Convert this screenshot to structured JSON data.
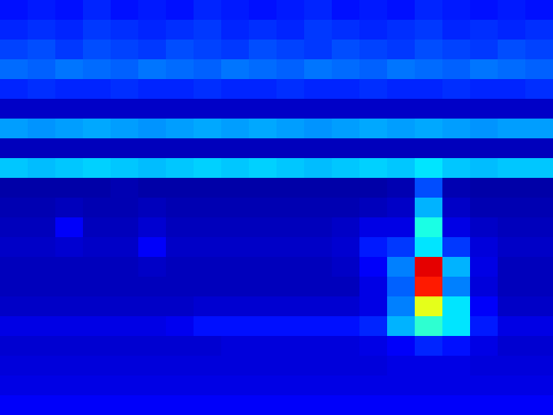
{
  "chart_data": {
    "type": "heatmap",
    "tick_labels": false,
    "zlim": [
      0,
      1
    ],
    "cells": [
      [
        0.14,
        0.15,
        0.14,
        0.16,
        0.14,
        0.15,
        0.14,
        0.16,
        0.15,
        0.14,
        0.15,
        0.16,
        0.14,
        0.15,
        0.14,
        0.16,
        0.15,
        0.14,
        0.15,
        0.14
      ],
      [
        0.16,
        0.17,
        0.16,
        0.18,
        0.17,
        0.16,
        0.17,
        0.18,
        0.16,
        0.17,
        0.16,
        0.18,
        0.17,
        0.16,
        0.17,
        0.18,
        0.16,
        0.17,
        0.16,
        0.17
      ],
      [
        0.19,
        0.2,
        0.18,
        0.2,
        0.19,
        0.18,
        0.2,
        0.19,
        0.18,
        0.2,
        0.19,
        0.18,
        0.2,
        0.19,
        0.18,
        0.2,
        0.19,
        0.18,
        0.2,
        0.19
      ],
      [
        0.23,
        0.22,
        0.24,
        0.23,
        0.22,
        0.24,
        0.23,
        0.22,
        0.24,
        0.23,
        0.22,
        0.24,
        0.23,
        0.22,
        0.24,
        0.23,
        0.22,
        0.24,
        0.23,
        0.22
      ],
      [
        0.16,
        0.17,
        0.16,
        0.16,
        0.17,
        0.16,
        0.16,
        0.17,
        0.16,
        0.16,
        0.17,
        0.16,
        0.16,
        0.17,
        0.16,
        0.16,
        0.17,
        0.16,
        0.16,
        0.17
      ],
      [
        0.07,
        0.07,
        0.07,
        0.07,
        0.07,
        0.07,
        0.07,
        0.07,
        0.07,
        0.07,
        0.07,
        0.07,
        0.07,
        0.07,
        0.07,
        0.07,
        0.07,
        0.07,
        0.07,
        0.07
      ],
      [
        0.28,
        0.27,
        0.28,
        0.29,
        0.28,
        0.27,
        0.28,
        0.29,
        0.28,
        0.29,
        0.28,
        0.27,
        0.28,
        0.29,
        0.28,
        0.29,
        0.28,
        0.27,
        0.28,
        0.28
      ],
      [
        0.06,
        0.06,
        0.06,
        0.06,
        0.06,
        0.06,
        0.06,
        0.06,
        0.06,
        0.06,
        0.06,
        0.06,
        0.06,
        0.06,
        0.06,
        0.06,
        0.06,
        0.06,
        0.06,
        0.06
      ],
      [
        0.32,
        0.31,
        0.32,
        0.33,
        0.32,
        0.31,
        0.32,
        0.33,
        0.32,
        0.33,
        0.32,
        0.31,
        0.32,
        0.33,
        0.32,
        0.35,
        0.32,
        0.31,
        0.32,
        0.32
      ],
      [
        0.04,
        0.04,
        0.04,
        0.04,
        0.05,
        0.04,
        0.04,
        0.04,
        0.04,
        0.04,
        0.04,
        0.04,
        0.04,
        0.04,
        0.05,
        0.2,
        0.05,
        0.04,
        0.04,
        0.04
      ],
      [
        0.05,
        0.05,
        0.06,
        0.05,
        0.05,
        0.06,
        0.05,
        0.05,
        0.05,
        0.05,
        0.05,
        0.05,
        0.05,
        0.06,
        0.07,
        0.3,
        0.07,
        0.05,
        0.05,
        0.05
      ],
      [
        0.06,
        0.06,
        0.12,
        0.06,
        0.06,
        0.08,
        0.06,
        0.06,
        0.06,
        0.06,
        0.06,
        0.06,
        0.07,
        0.1,
        0.1,
        0.4,
        0.1,
        0.07,
        0.06,
        0.06
      ],
      [
        0.07,
        0.07,
        0.08,
        0.07,
        0.07,
        0.12,
        0.07,
        0.07,
        0.07,
        0.07,
        0.07,
        0.07,
        0.08,
        0.15,
        0.18,
        0.35,
        0.18,
        0.09,
        0.07,
        0.07
      ],
      [
        0.06,
        0.06,
        0.06,
        0.06,
        0.06,
        0.07,
        0.06,
        0.06,
        0.06,
        0.06,
        0.06,
        0.06,
        0.07,
        0.12,
        0.25,
        0.9,
        0.3,
        0.1,
        0.06,
        0.06
      ],
      [
        0.06,
        0.06,
        0.06,
        0.06,
        0.06,
        0.06,
        0.06,
        0.06,
        0.06,
        0.06,
        0.06,
        0.06,
        0.06,
        0.1,
        0.22,
        0.85,
        0.25,
        0.09,
        0.06,
        0.06
      ],
      [
        0.07,
        0.07,
        0.07,
        0.07,
        0.07,
        0.07,
        0.07,
        0.08,
        0.08,
        0.08,
        0.08,
        0.08,
        0.08,
        0.1,
        0.25,
        0.6,
        0.35,
        0.12,
        0.07,
        0.07
      ],
      [
        0.1,
        0.1,
        0.1,
        0.1,
        0.1,
        0.1,
        0.11,
        0.14,
        0.14,
        0.14,
        0.14,
        0.14,
        0.14,
        0.16,
        0.3,
        0.42,
        0.35,
        0.15,
        0.1,
        0.1
      ],
      [
        0.08,
        0.08,
        0.08,
        0.08,
        0.08,
        0.08,
        0.08,
        0.08,
        0.09,
        0.09,
        0.09,
        0.09,
        0.09,
        0.1,
        0.12,
        0.16,
        0.14,
        0.1,
        0.08,
        0.08
      ],
      [
        0.09,
        0.09,
        0.09,
        0.09,
        0.09,
        0.09,
        0.09,
        0.09,
        0.09,
        0.09,
        0.09,
        0.09,
        0.09,
        0.09,
        0.1,
        0.1,
        0.1,
        0.09,
        0.09,
        0.09
      ],
      [
        0.1,
        0.1,
        0.1,
        0.1,
        0.1,
        0.1,
        0.1,
        0.1,
        0.1,
        0.1,
        0.1,
        0.1,
        0.1,
        0.1,
        0.1,
        0.1,
        0.1,
        0.1,
        0.1,
        0.1
      ],
      [
        0.12,
        0.12,
        0.12,
        0.12,
        0.12,
        0.12,
        0.12,
        0.12,
        0.12,
        0.12,
        0.12,
        0.12,
        0.12,
        0.12,
        0.12,
        0.12,
        0.12,
        0.12,
        0.12,
        0.12
      ]
    ]
  }
}
